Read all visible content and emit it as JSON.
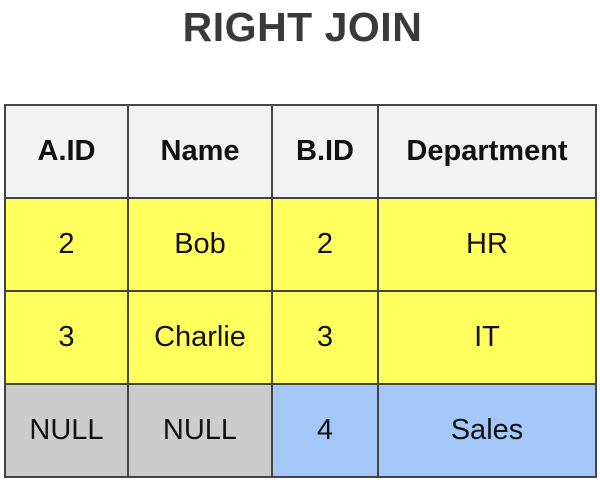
{
  "title": "RIGHT JOIN",
  "table": {
    "headers": [
      "A.ID",
      "Name",
      "B.ID",
      "Department"
    ],
    "rows": [
      {
        "cells": [
          "2",
          "Bob",
          "2",
          "HR"
        ],
        "fills": [
          "#ffff5e",
          "#ffff5e",
          "#ffff5e",
          "#ffff5e"
        ]
      },
      {
        "cells": [
          "3",
          "Charlie",
          "3",
          "IT"
        ],
        "fills": [
          "#ffff5e",
          "#ffff5e",
          "#ffff5e",
          "#ffff5e"
        ]
      },
      {
        "cells": [
          "NULL",
          "NULL",
          "4",
          "Sales"
        ],
        "fills": [
          "#cccccc",
          "#cccccc",
          "#a3c8f8",
          "#a3c8f8"
        ]
      }
    ]
  },
  "colors": {
    "matched": "#ffff5e",
    "null_left": "#cccccc",
    "right_only": "#a3c8f8",
    "header": "#f2f2f2",
    "title": "#3a3a3a"
  }
}
